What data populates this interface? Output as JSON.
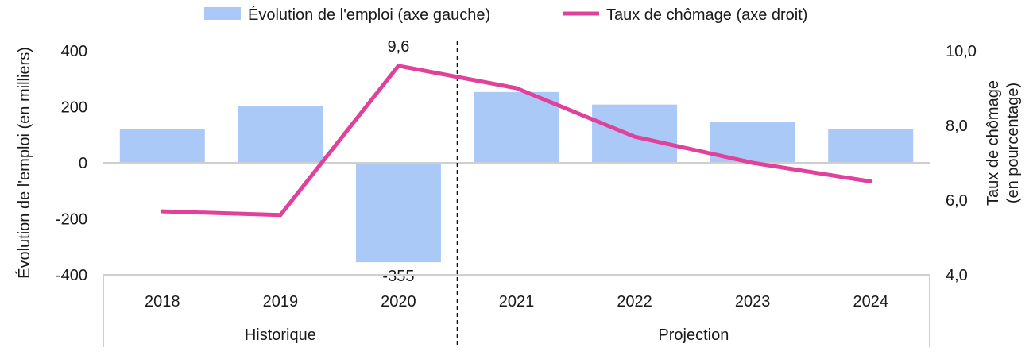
{
  "chart_data": {
    "type": "bar+line",
    "categories": [
      "2018",
      "2019",
      "2020",
      "2021",
      "2022",
      "2023",
      "2024"
    ],
    "groups": [
      {
        "label": "Historique",
        "categories": [
          "2018",
          "2019",
          "2020"
        ]
      },
      {
        "label": "Projection",
        "categories": [
          "2021",
          "2022",
          "2023",
          "2024"
        ]
      }
    ],
    "series": [
      {
        "name": "Évolution de l'emploi (axe gauche)",
        "type": "bar",
        "axis": "left",
        "color": "#abc9f7",
        "values": [
          120,
          203,
          -355,
          253,
          208,
          145,
          122
        ]
      },
      {
        "name": "Taux de chômage (axe droit)",
        "type": "line",
        "axis": "right",
        "color": "#e0419a",
        "values": [
          5.7,
          5.6,
          9.6,
          9.0,
          7.7,
          7.0,
          6.5
        ]
      }
    ],
    "data_labels": [
      {
        "series": 1,
        "index": 2,
        "text": "9,6"
      },
      {
        "series": 0,
        "index": 2,
        "text": "-355"
      }
    ],
    "y_left": {
      "label": "Évolution de l'emploi (en milliers)",
      "range": [
        -400,
        400
      ],
      "ticks": [
        400,
        200,
        0,
        -200,
        -400
      ],
      "tick_labels": [
        "400",
        "200",
        "0",
        "-200",
        "-400"
      ]
    },
    "y_right": {
      "label_lines": [
        "Taux de chômage",
        "(en pourcentage)"
      ],
      "range": [
        4,
        10
      ],
      "ticks": [
        10,
        8,
        6,
        4
      ],
      "tick_labels": [
        "10,0",
        "8,0",
        "6,0",
        "4,0"
      ]
    },
    "divider_after_category": "2020",
    "legend_position": "top",
    "grid": false
  }
}
